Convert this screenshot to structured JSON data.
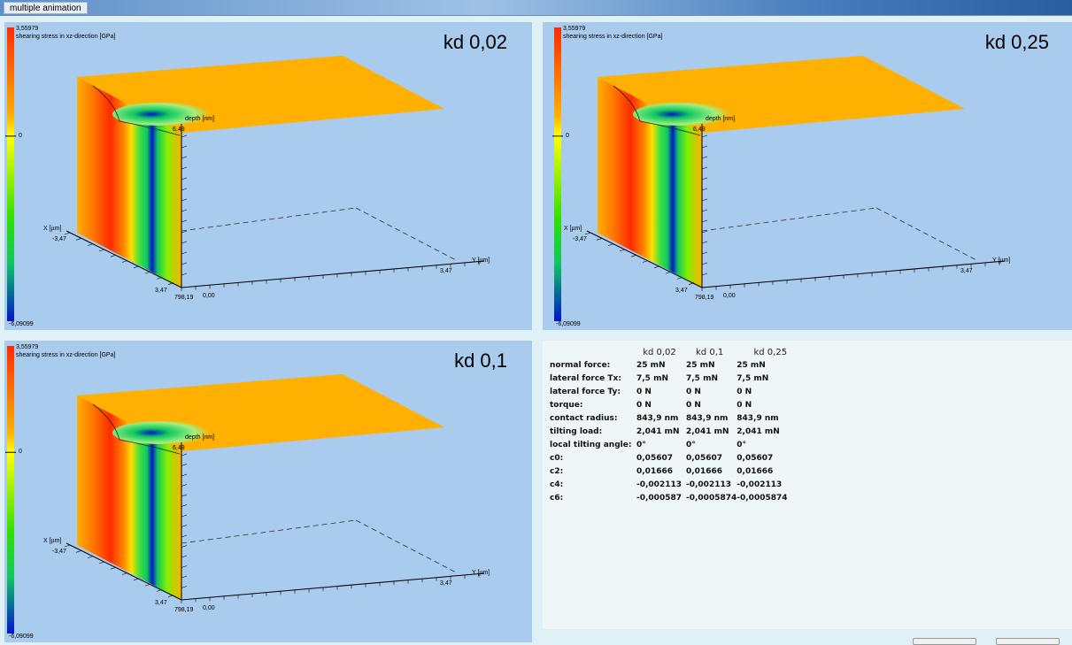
{
  "window": {
    "title": "multiple animation"
  },
  "colorbar": {
    "max": "3,55979",
    "zero": "0",
    "min": "-6,09099",
    "title": "shearing stress in xz-direction [GPa]"
  },
  "axes": {
    "depth_label": "depth [nm]",
    "depth_value": "6,49",
    "x_label": "X [µm]",
    "x_min": "-3,47",
    "x_max": "3,47",
    "y_label": "Y [µm]",
    "y_max": "3,47",
    "origin_y": "0,00",
    "origin_z": "798,19"
  },
  "panels": [
    {
      "label": "kd 0,02"
    },
    {
      "label": "kd 0,25"
    },
    {
      "label": "kd 0,1"
    }
  ],
  "table": {
    "headers": [
      "kd 0,02",
      "kd 0,1",
      "kd 0,25"
    ],
    "rows": [
      {
        "label": "normal force:",
        "values": [
          "25 mN",
          "25 mN",
          "25 mN"
        ]
      },
      {
        "label": "lateral force Tx:",
        "values": [
          "7,5 mN",
          "7,5 mN",
          "7,5 mN"
        ]
      },
      {
        "label": "lateral force Ty:",
        "values": [
          "0 N",
          "0 N",
          "0 N"
        ]
      },
      {
        "label": "torque:",
        "values": [
          "0 N",
          "0 N",
          "0 N"
        ]
      },
      {
        "label": "contact radius:",
        "values": [
          "843,9 nm",
          "843,9 nm",
          "843,9 nm"
        ]
      },
      {
        "label": "tilting load:",
        "values": [
          "2,041 mN",
          "2,041 mN",
          "2,041 mN"
        ]
      },
      {
        "label": "local tilting angle:",
        "values": [
          "0°",
          "0°",
          "0°"
        ]
      },
      {
        "label": "c0:",
        "values": [
          "0,05607",
          "0,05607",
          "0,05607"
        ]
      },
      {
        "label": "c2:",
        "values": [
          "0,01666",
          "0,01666",
          "0,01666"
        ]
      },
      {
        "label": "c4:",
        "values": [
          "-0,002113",
          "-0,002113",
          "-0,002113"
        ]
      },
      {
        "label": "c6:",
        "values": [
          "-0,000587",
          "-0,0005874",
          "-0,0005874"
        ]
      }
    ]
  },
  "colors": {
    "plot_background": "#a8cbee",
    "surface_orange": "#ffb000",
    "stress_red": "#ff2a00",
    "stress_blue": "#0016c8",
    "stress_green": "#10c860"
  }
}
